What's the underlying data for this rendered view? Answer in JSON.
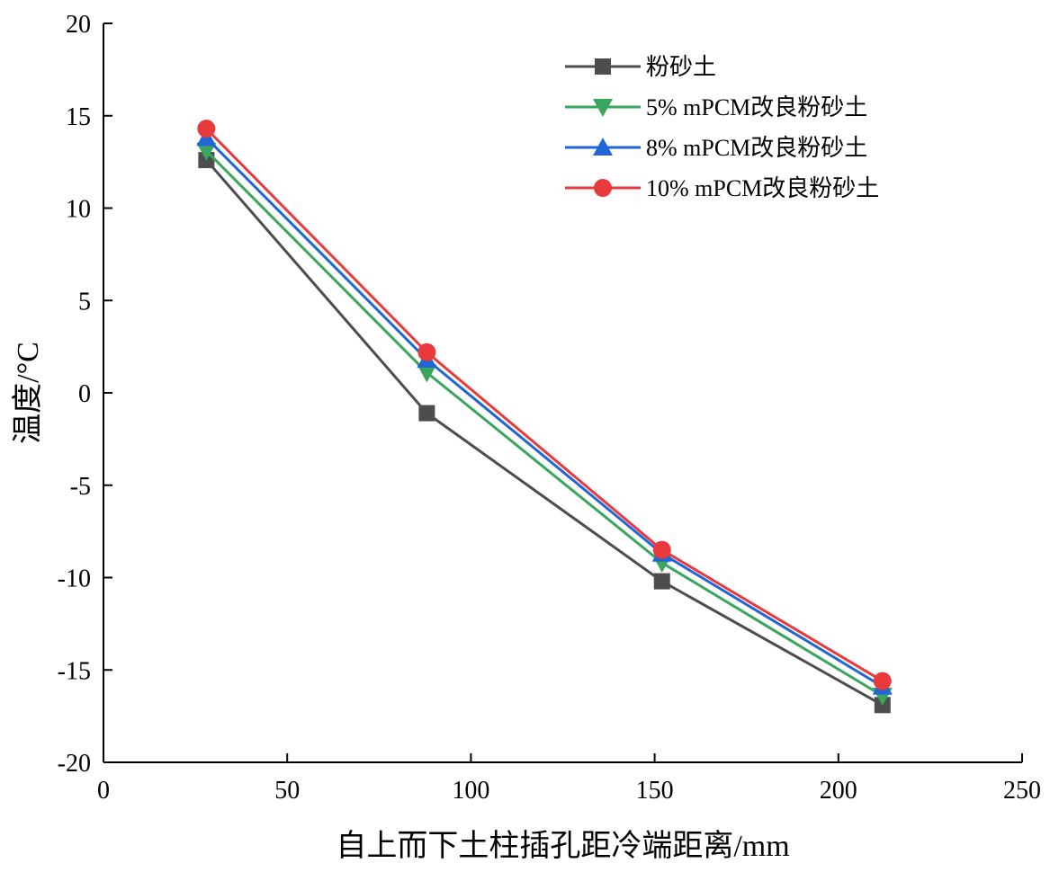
{
  "chart_data": {
    "type": "line",
    "xlabel": "自上而下土柱插孔距冷端距离/mm",
    "ylabel": "温度/°C",
    "xlim": [
      0,
      250
    ],
    "ylim": [
      -20,
      20
    ],
    "xticks": [
      0,
      50,
      100,
      150,
      200,
      250
    ],
    "yticks": [
      20,
      15,
      10,
      5,
      0,
      -5,
      -10,
      -15,
      -20
    ],
    "x": [
      28,
      88,
      152,
      212
    ],
    "grid": false,
    "legend_position": "top-right",
    "series": [
      {
        "name": "粉砂土",
        "values": [
          12.6,
          -1.1,
          -10.2,
          -16.9
        ],
        "color": "#4d4d4d",
        "marker": "square"
      },
      {
        "name": "5% mPCM改良粉砂土",
        "values": [
          13.1,
          1.1,
          -9.2,
          -16.4
        ],
        "color": "#3aa55d",
        "marker": "triangle-down"
      },
      {
        "name": "8% mPCM改良粉砂土",
        "values": [
          13.8,
          1.8,
          -8.7,
          -15.9
        ],
        "color": "#2166d9",
        "marker": "triangle-up"
      },
      {
        "name": "10% mPCM改良粉砂土",
        "values": [
          14.3,
          2.2,
          -8.5,
          -15.6
        ],
        "color": "#e8393c",
        "marker": "circle"
      }
    ]
  }
}
